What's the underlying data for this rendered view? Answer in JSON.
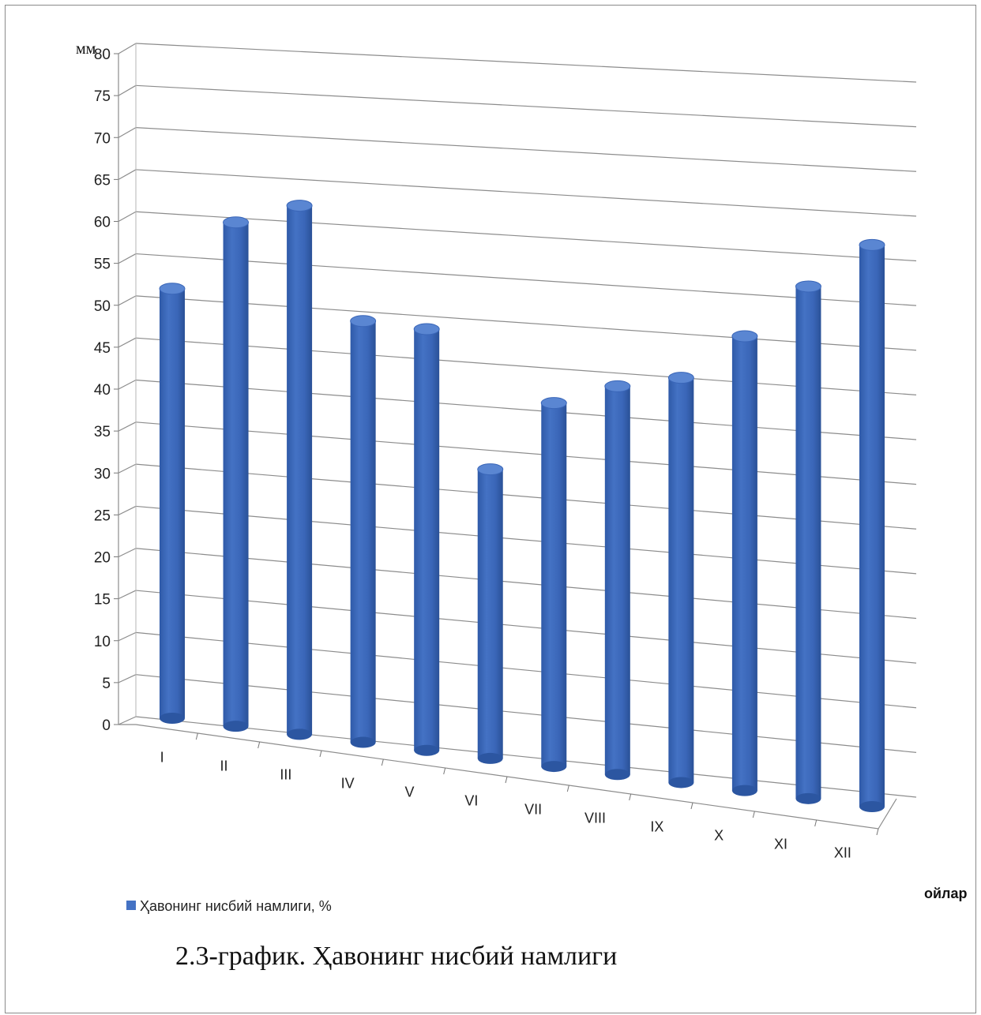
{
  "chart_data": {
    "type": "bar",
    "style": "3d-cylinder",
    "categories": [
      "I",
      "II",
      "III",
      "IV",
      "V",
      "VI",
      "VII",
      "VIII",
      "IX",
      "X",
      "XI",
      "XII"
    ],
    "series": [
      {
        "name": "Ҳавонинг нисбий намлиги, %",
        "color": "#4472C4",
        "values": [
          52,
          61,
          64,
          51,
          51,
          35,
          44,
          47,
          49,
          55,
          62,
          68
        ]
      }
    ],
    "ylim": [
      0,
      80
    ],
    "yticks": [
      0,
      5,
      10,
      15,
      20,
      25,
      30,
      35,
      40,
      45,
      50,
      55,
      60,
      65,
      70,
      75,
      80
    ],
    "ylabel": "мм",
    "xlabel": "ойлар",
    "grid": true,
    "legend_position": "bottom-left"
  },
  "caption": "2.3-график. Ҳавонинг нисбий намлиги"
}
